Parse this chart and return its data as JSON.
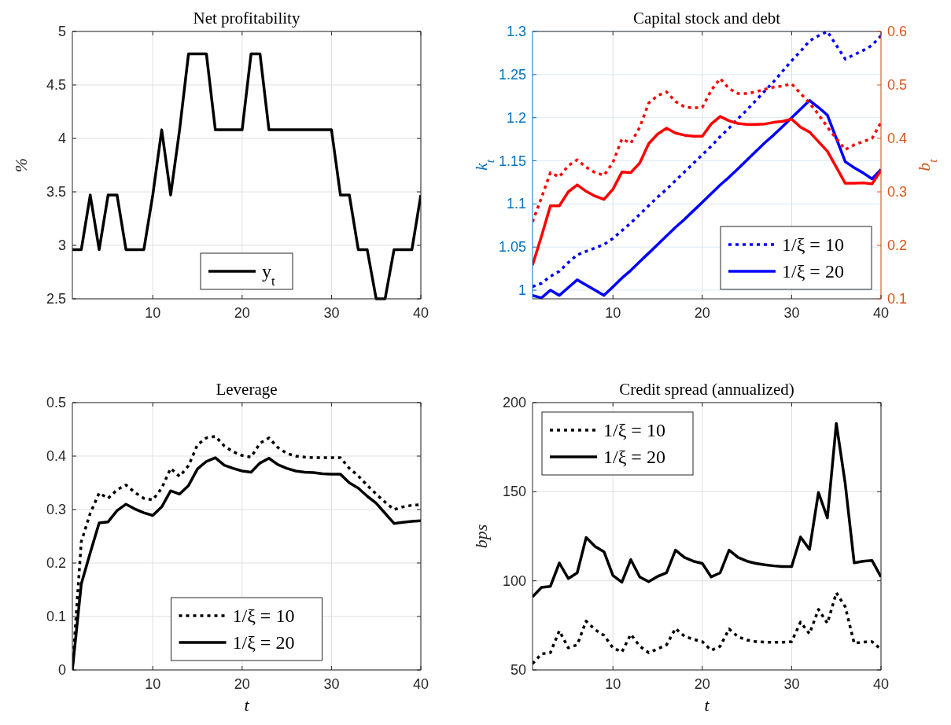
{
  "chart_data": [
    {
      "type": "line",
      "title": "Net profitability",
      "ylabel": "%",
      "x": [
        1,
        2,
        3,
        4,
        5,
        6,
        7,
        8,
        9,
        10,
        11,
        12,
        13,
        14,
        15,
        16,
        17,
        18,
        19,
        20,
        21,
        22,
        23,
        24,
        25,
        26,
        27,
        28,
        29,
        30,
        31,
        32,
        33,
        34,
        35,
        36,
        37,
        38,
        39,
        40
      ],
      "xlim": [
        1,
        40
      ],
      "xticks": [
        10,
        20,
        30,
        40
      ],
      "ylim": [
        2.5,
        5
      ],
      "yticks": [
        2.5,
        3,
        3.5,
        4,
        4.5,
        5
      ],
      "grid": true,
      "legend": "bottom",
      "series": [
        {
          "name": "y$_{t}$",
          "color": "#000000",
          "line_style": "solid",
          "values": [
            2.96,
            2.96,
            3.47,
            2.96,
            3.47,
            3.47,
            2.96,
            2.96,
            2.96,
            3.47,
            4.08,
            3.47,
            4.08,
            4.79,
            4.79,
            4.79,
            4.08,
            4.08,
            4.08,
            4.08,
            4.79,
            4.79,
            4.08,
            4.08,
            4.08,
            4.08,
            4.08,
            4.08,
            4.08,
            4.08,
            3.47,
            3.47,
            2.96,
            2.96,
            2.5,
            2.5,
            2.96,
            2.96,
            2.96,
            3.47
          ]
        }
      ]
    },
    {
      "type": "line",
      "title": "Capital stock and debt",
      "ylabel": "k$_{t}$",
      "y2label": "b$_{t}$",
      "x": [
        1,
        2,
        3,
        4,
        5,
        6,
        7,
        8,
        9,
        10,
        11,
        12,
        13,
        14,
        15,
        16,
        17,
        18,
        19,
        20,
        21,
        22,
        23,
        24,
        25,
        26,
        27,
        28,
        29,
        30,
        31,
        32,
        33,
        34,
        35,
        36,
        37,
        38,
        39,
        40
      ],
      "xlim": [
        1,
        40
      ],
      "xticks": [
        10,
        20,
        30,
        40
      ],
      "ylim": [
        0.99,
        1.3
      ],
      "yticks": [
        1,
        1.05,
        1.1,
        1.15,
        1.2,
        1.25,
        1.3
      ],
      "y2lim": [
        0.1,
        0.6
      ],
      "y2ticks": [
        0.1,
        0.2,
        0.3,
        0.4,
        0.5,
        0.6
      ],
      "grid": true,
      "legend": "bottom right",
      "series": [
        {
          "name": "1/ξ = 10",
          "color": "#0000ff",
          "line_style": "dotted",
          "values": [
            1.004,
            1.008,
            1.016,
            1.022,
            1.032,
            1.041,
            1.045,
            1.049,
            1.053,
            1.06,
            1.069,
            1.078,
            1.088,
            1.098,
            1.108,
            1.117,
            1.127,
            1.137,
            1.147,
            1.157,
            1.167,
            1.178,
            1.188,
            1.199,
            1.209,
            1.22,
            1.231,
            1.242,
            1.254,
            1.266,
            1.277,
            1.289,
            1.295,
            1.3,
            1.284,
            1.268,
            1.273,
            1.278,
            1.284,
            1.295
          ]
        },
        {
          "name": "1/ξ = 20",
          "color": "#0000ff",
          "line_style": "solid",
          "values": [
            0.994,
            0.991,
            1.0,
            0.994,
            1.003,
            1.012,
            1.006,
            1.0,
            0.994,
            1.004,
            1.014,
            1.023,
            1.033,
            1.043,
            1.053,
            1.063,
            1.073,
            1.082,
            1.092,
            1.102,
            1.112,
            1.122,
            1.131,
            1.141,
            1.151,
            1.161,
            1.171,
            1.18,
            1.19,
            1.2,
            1.21,
            1.22,
            1.212,
            1.203,
            1.176,
            1.149,
            1.142,
            1.136,
            1.129,
            1.14
          ]
        },
        {
          "color": "#ff0000",
          "line_style": "dotted",
          "axis": "y2",
          "values": [
            0.244,
            0.289,
            0.336,
            0.328,
            0.349,
            0.36,
            0.346,
            0.336,
            0.331,
            0.355,
            0.399,
            0.391,
            0.421,
            0.466,
            0.48,
            0.487,
            0.469,
            0.459,
            0.457,
            0.458,
            0.49,
            0.512,
            0.493,
            0.484,
            0.484,
            0.487,
            0.492,
            0.496,
            0.498,
            0.502,
            0.484,
            0.466,
            0.445,
            0.421,
            0.4,
            0.379,
            0.388,
            0.394,
            0.4,
            0.43
          ]
        },
        {
          "color": "#ff0000",
          "line_style": "solid",
          "axis": "y2",
          "values": [
            0.163,
            0.217,
            0.274,
            0.274,
            0.3,
            0.313,
            0.301,
            0.292,
            0.286,
            0.305,
            0.337,
            0.336,
            0.354,
            0.39,
            0.408,
            0.419,
            0.41,
            0.406,
            0.404,
            0.404,
            0.427,
            0.441,
            0.433,
            0.428,
            0.426,
            0.426,
            0.427,
            0.43,
            0.432,
            0.436,
            0.421,
            0.412,
            0.394,
            0.376,
            0.346,
            0.316,
            0.316,
            0.317,
            0.315,
            0.34
          ]
        }
      ]
    },
    {
      "type": "line",
      "title": "Leverage",
      "xlabel": "t",
      "x": [
        1,
        2,
        3,
        4,
        5,
        6,
        7,
        8,
        9,
        10,
        11,
        12,
        13,
        14,
        15,
        16,
        17,
        18,
        19,
        20,
        21,
        22,
        23,
        24,
        25,
        26,
        27,
        28,
        29,
        30,
        31,
        32,
        33,
        34,
        35,
        36,
        37,
        38,
        39,
        40
      ],
      "xlim": [
        1,
        40
      ],
      "xticks": [
        10,
        20,
        30,
        40
      ],
      "ylim": [
        0,
        0.5
      ],
      "yticks": [
        0,
        0.1,
        0.2,
        0.3,
        0.4,
        0.5
      ],
      "grid": true,
      "legend": "bottom",
      "series": [
        {
          "name": "1/ξ = 10",
          "color": "#000000",
          "line_style": "dotted",
          "values": [
            0,
            0.24,
            0.293,
            0.331,
            0.321,
            0.337,
            0.346,
            0.332,
            0.321,
            0.318,
            0.34,
            0.377,
            0.362,
            0.382,
            0.421,
            0.434,
            0.437,
            0.419,
            0.408,
            0.401,
            0.398,
            0.424,
            0.434,
            0.416,
            0.405,
            0.4,
            0.398,
            0.397,
            0.397,
            0.397,
            0.397,
            0.377,
            0.363,
            0.345,
            0.329,
            0.314,
            0.3,
            0.305,
            0.308,
            0.309
          ]
        },
        {
          "name": "1/ξ = 20",
          "color": "#000000",
          "line_style": "solid",
          "values": [
            0,
            0.161,
            0.219,
            0.275,
            0.277,
            0.298,
            0.31,
            0.301,
            0.294,
            0.289,
            0.305,
            0.335,
            0.329,
            0.345,
            0.376,
            0.39,
            0.397,
            0.383,
            0.377,
            0.372,
            0.37,
            0.387,
            0.396,
            0.384,
            0.377,
            0.372,
            0.37,
            0.369,
            0.367,
            0.366,
            0.366,
            0.35,
            0.34,
            0.325,
            0.312,
            0.293,
            0.274,
            0.276,
            0.278,
            0.279
          ]
        }
      ]
    },
    {
      "type": "line",
      "title": "Credit spread (annualized)",
      "xlabel": "t",
      "ylabel": "bps",
      "x": [
        1,
        2,
        3,
        4,
        5,
        6,
        7,
        8,
        9,
        10,
        11,
        12,
        13,
        14,
        15,
        16,
        17,
        18,
        19,
        20,
        21,
        22,
        23,
        24,
        25,
        26,
        27,
        28,
        29,
        30,
        31,
        32,
        33,
        34,
        35,
        36,
        37,
        38,
        39,
        40
      ],
      "xlim": [
        1,
        40
      ],
      "xticks": [
        10,
        20,
        30,
        40
      ],
      "ylim": [
        50,
        200
      ],
      "yticks": [
        50,
        100,
        150,
        200
      ],
      "grid": true,
      "legend": "top left",
      "series": [
        {
          "name": "1/ξ = 10",
          "color": "#000000",
          "line_style": "dotted",
          "values": [
            53.5,
            59,
            59.7,
            72,
            62.4,
            64.1,
            77.4,
            72.6,
            69.4,
            62.4,
            60.1,
            70,
            63.3,
            59.7,
            61.8,
            64.1,
            73.3,
            68.9,
            67.2,
            65.9,
            61,
            63.3,
            73,
            68.6,
            66.8,
            65.9,
            65.6,
            65.6,
            65.6,
            65.9,
            76.9,
            70.3,
            84,
            76.2,
            93.3,
            85.4,
            65,
            65.6,
            65.9,
            61.5
          ]
        },
        {
          "name": "1/ξ = 20",
          "color": "#000000",
          "line_style": "solid",
          "values": [
            91,
            96.3,
            96.9,
            110,
            101.3,
            104.5,
            124.3,
            119.3,
            116.3,
            103,
            99.2,
            111.9,
            102.2,
            99.5,
            102.5,
            104.5,
            117.2,
            113.1,
            111,
            109.8,
            102.2,
            104.5,
            117.2,
            113.1,
            111,
            109.8,
            109,
            108.4,
            108,
            108,
            124.6,
            117.6,
            149.6,
            135.3,
            188.3,
            154.4,
            110.1,
            111,
            111.4,
            102.2
          ]
        }
      ]
    }
  ]
}
